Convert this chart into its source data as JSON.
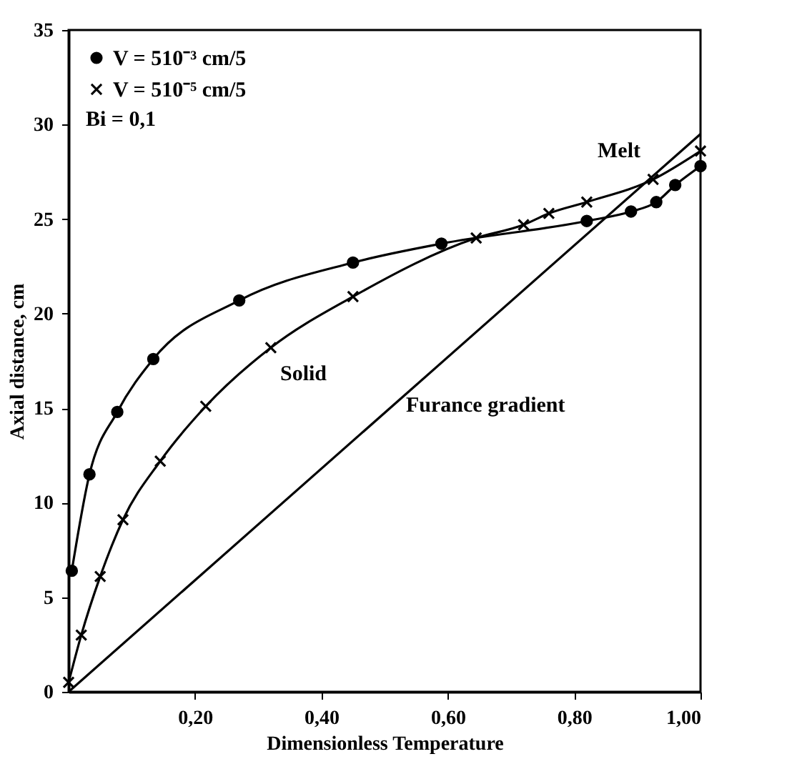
{
  "chart_data": {
    "type": "line",
    "xlabel": "Dimensionless Temperature",
    "ylabel": "Axial distance, cm",
    "xlim": [
      0,
      1.0
    ],
    "ylim": [
      0,
      35
    ],
    "xticks": [
      {
        "value": 0.2,
        "label": "0,20"
      },
      {
        "value": 0.4,
        "label": "0,40"
      },
      {
        "value": 0.6,
        "label": "0,60"
      },
      {
        "value": 0.8,
        "label": "0,80"
      },
      {
        "value": 1.0,
        "label": "1,00"
      }
    ],
    "yticks": [
      0,
      5,
      10,
      15,
      20,
      25,
      30,
      35
    ],
    "legend": "top left",
    "grid": false,
    "series": [
      {
        "name": "V = 510⁻³ cm/5",
        "color": "#000000",
        "marker": "circle",
        "x": [
          0.005,
          0.033,
          0.077,
          0.134,
          0.27,
          0.45,
          0.59,
          0.82,
          0.89,
          0.93,
          0.96,
          1.0
        ],
        "values": [
          6.4,
          11.5,
          14.8,
          17.6,
          20.7,
          22.7,
          23.7,
          24.9,
          25.4,
          25.9,
          26.8,
          27.8
        ]
      },
      {
        "name": "V = 510⁻⁵ cm/5",
        "color": "#000000",
        "marker": "cross",
        "x": [
          0.0,
          0.02,
          0.05,
          0.086,
          0.145,
          0.217,
          0.32,
          0.45,
          0.645,
          0.72,
          0.76,
          0.82,
          0.925,
          1.0
        ],
        "values": [
          0.5,
          3.0,
          6.1,
          9.1,
          12.2,
          15.1,
          18.2,
          20.9,
          24.0,
          24.7,
          25.3,
          25.9,
          27.1,
          28.6
        ]
      },
      {
        "color": "#000000",
        "marker": "none",
        "x": [
          0.0,
          1.0
        ],
        "values": [
          0.0,
          29.5
        ]
      }
    ],
    "annotations": [
      "Bi = 0,1",
      "Solid",
      "Melt",
      "Furance gradient"
    ]
  }
}
